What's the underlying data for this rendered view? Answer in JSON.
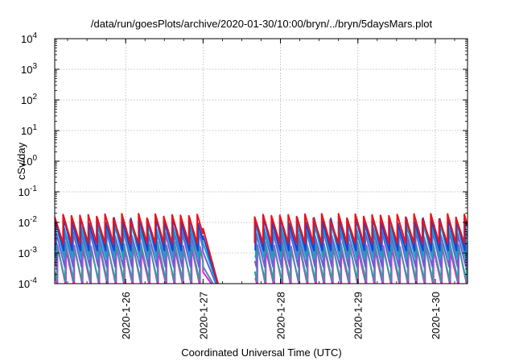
{
  "chart_data": {
    "type": "line",
    "title": "/data/run/goesPlots/archive/2020-01-30/10:00/bryn/../bryn/5daysMars.plot",
    "xlabel": "Coordinated Universal Time (UTC)",
    "ylabel": "cSv/day",
    "yscale": "log",
    "ylim": [
      0.0001,
      10000
    ],
    "xlim": [
      "2020-01-25T02:00",
      "2020-01-30T10:00"
    ],
    "grid": true,
    "y_ticks": [
      {
        "value": 0.0001,
        "base": "10",
        "exp": "-4"
      },
      {
        "value": 0.001,
        "base": "10",
        "exp": "-3"
      },
      {
        "value": 0.01,
        "base": "10",
        "exp": "-2"
      },
      {
        "value": 0.1,
        "base": "10",
        "exp": "-1"
      },
      {
        "value": 1,
        "base": "10",
        "exp": "0"
      },
      {
        "value": 10,
        "base": "10",
        "exp": "1"
      },
      {
        "value": 100,
        "base": "10",
        "exp": "2"
      },
      {
        "value": 1000,
        "base": "10",
        "exp": "3"
      },
      {
        "value": 10000,
        "base": "10",
        "exp": "4"
      }
    ],
    "x_ticks": [
      {
        "value": "2020-01-26T00:00",
        "label": "2020-1-26"
      },
      {
        "value": "2020-01-27T00:00",
        "label": "2020-1-27"
      },
      {
        "value": "2020-01-28T00:00",
        "label": "2020-1-28"
      },
      {
        "value": "2020-01-29T00:00",
        "label": "2020-1-29"
      },
      {
        "value": "2020-01-30T00:00",
        "label": "2020-1-30"
      }
    ],
    "pattern": {
      "period_hours": 2.6,
      "segments": [
        {
          "start": "2020-01-25T02:00",
          "end": "2020-01-27T00:00",
          "decay_end": "2020-01-27T06:00"
        },
        {
          "start": "2020-01-27T16:00",
          "end": "2020-01-30T10:00"
        }
      ]
    },
    "series": [
      {
        "color": "#e8141c",
        "peak": 0.016,
        "trough": 0.0021,
        "phase": 0.0
      },
      {
        "color": "#1f3fd8",
        "peak": 0.012,
        "trough": 0.0012,
        "phase": 0.08
      },
      {
        "color": "#1aa0c8",
        "peak": 0.008,
        "trough": 0.0007,
        "phase": 0.14
      },
      {
        "color": "#6b5fd6",
        "peak": 0.0045,
        "trough": 0.00035,
        "phase": 0.2
      },
      {
        "color": "#3a9a9a",
        "peak": 0.002,
        "trough": 0.00012,
        "phase": 0.26
      },
      {
        "color": "#e81ee0",
        "peak": 0.0015,
        "trough": 8e-05,
        "phase": 0.33
      }
    ]
  }
}
